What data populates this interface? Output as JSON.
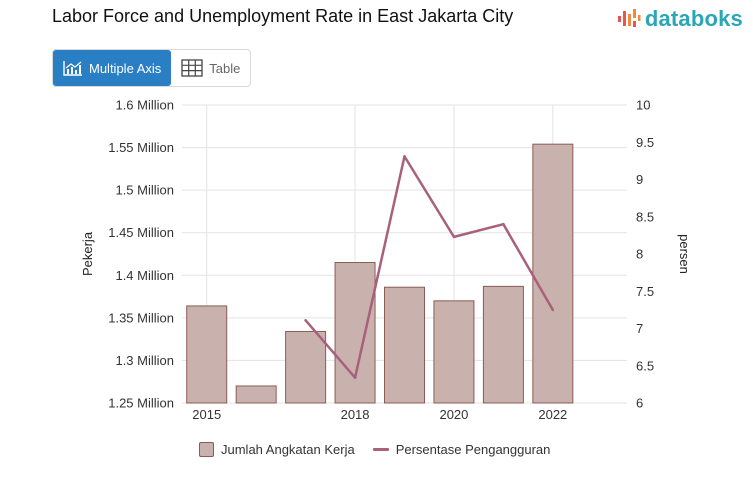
{
  "title": "Labor Force and Unemployment Rate in East Jakarta City",
  "brand": {
    "name": "databoks"
  },
  "tabs": [
    {
      "label": "Multiple Axis",
      "icon": "chart-icon",
      "active": true
    },
    {
      "label": "Table",
      "icon": "table-grid-icon",
      "active": false
    }
  ],
  "colors": {
    "bar_fill": "#c9b2ad",
    "bar_stroke": "#8b5c55",
    "line": "#a8607b",
    "tab_active": "#2a7fc4",
    "brand_accent": "#2ba6b5"
  },
  "chart_data": {
    "type": "bar",
    "x": [
      2015,
      2016,
      2017,
      2018,
      2019,
      2020,
      2021,
      2022,
      2023
    ],
    "x_tick_labels": [
      "2015",
      "2018",
      "2020",
      "2022"
    ],
    "x_tick_values": [
      2015,
      2018,
      2020,
      2022
    ],
    "series": [
      {
        "name": "Jumlah Angkatan Kerja",
        "type": "bar",
        "axis": "left",
        "values": [
          1364000,
          1270000,
          1334000,
          1415000,
          1386000,
          1370000,
          1387000,
          1554000,
          null
        ]
      },
      {
        "name": "Persentase Pengangguran",
        "type": "line",
        "axis": "right",
        "values": [
          null,
          null,
          7.11,
          6.34,
          9.31,
          8.23,
          8.4,
          7.25,
          null
        ]
      }
    ],
    "y_left": {
      "label": "Pekerja",
      "ylim": [
        1250000,
        1600000
      ],
      "tick_labels": [
        "1.6 Million",
        "1.55 Million",
        "1.5 Million",
        "1.45 Million",
        "1.4 Million",
        "1.35 Million",
        "1.3 Million",
        "1.25 Million"
      ],
      "tick_values": [
        1600000,
        1550000,
        1500000,
        1450000,
        1400000,
        1350000,
        1300000,
        1250000
      ]
    },
    "y_right": {
      "label": "persen",
      "ylim": [
        6,
        10
      ],
      "tick_labels": [
        "10",
        "9.5",
        "9",
        "8.5",
        "8",
        "7.5",
        "7",
        "6.5",
        "6"
      ],
      "tick_values": [
        10,
        9.5,
        9,
        8.5,
        8,
        7.5,
        7,
        6.5,
        6
      ]
    },
    "grid": true,
    "legend": "bottom"
  }
}
